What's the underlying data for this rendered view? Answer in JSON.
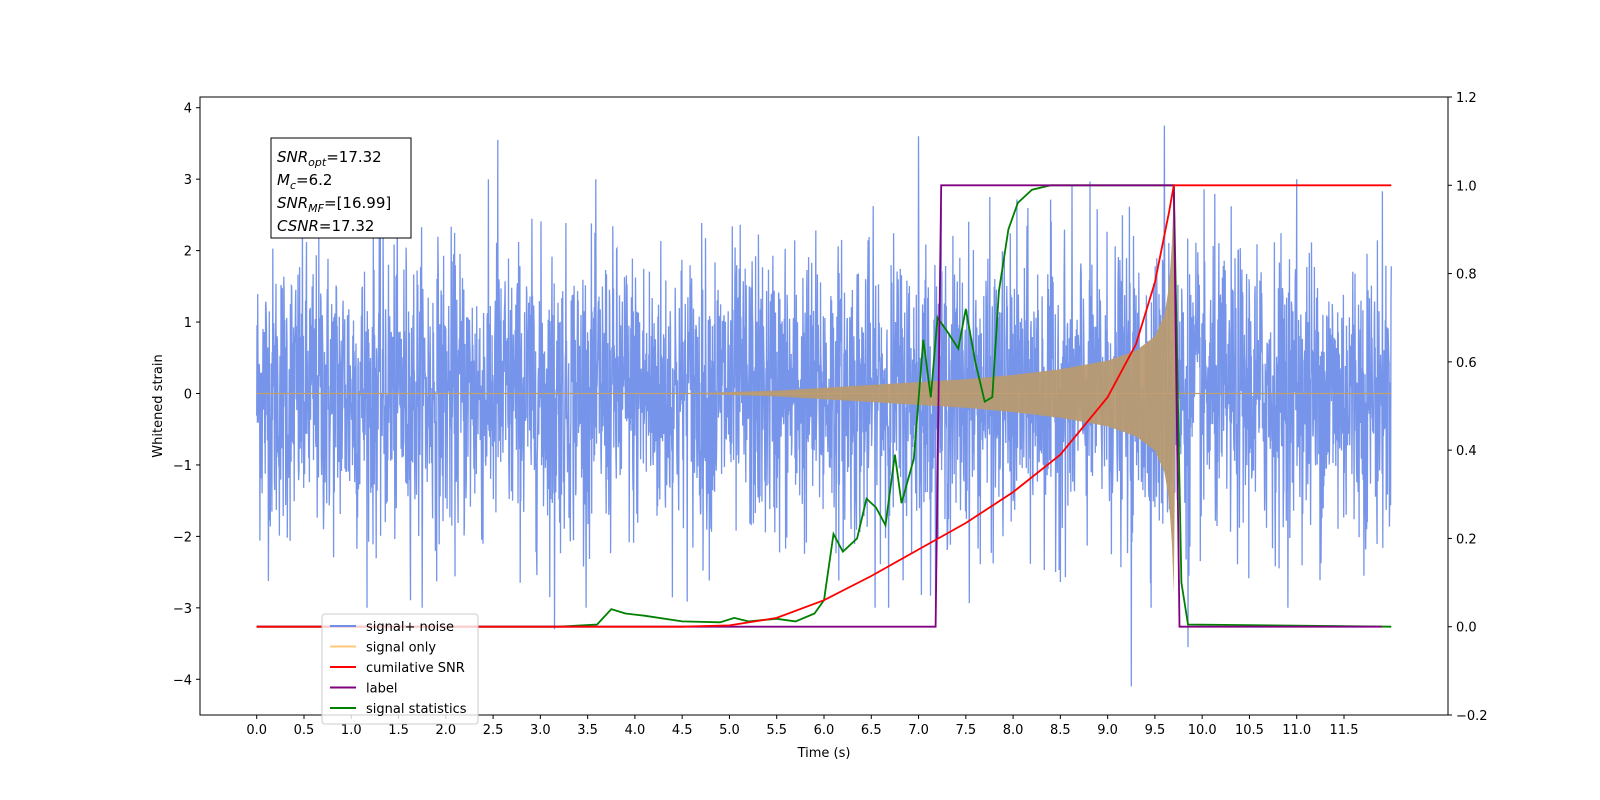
{
  "chart_data": {
    "type": "line",
    "xlabel": "Time (s)",
    "ylabel": "Whitened strain",
    "xlim": [
      -0.6,
      12.6
    ],
    "ylim": [
      -4.5,
      4.15
    ],
    "ylim_right": [
      -0.2,
      1.2
    ],
    "x_ticks": [
      "0.0",
      "0.5",
      "1.0",
      "1.5",
      "2.0",
      "2.5",
      "3.0",
      "3.5",
      "4.0",
      "4.5",
      "5.0",
      "5.5",
      "6.0",
      "6.5",
      "7.0",
      "7.5",
      "8.0",
      "8.5",
      "9.0",
      "9.5",
      "10.0",
      "10.5",
      "11.0",
      "11.5"
    ],
    "y_ticks_left": [
      "−4",
      "−3",
      "−2",
      "−1",
      "0",
      "1",
      "2",
      "3",
      "4"
    ],
    "y_ticks_right": [
      "−0.2",
      "0.0",
      "0.2",
      "0.4",
      "0.6",
      "0.8",
      "1.0",
      "1.2"
    ],
    "annotation": [
      {
        "base": "SNR",
        "sub": "opt",
        "value": "=17.32"
      },
      {
        "base": "M",
        "sub": "c",
        "value": "=6.2"
      },
      {
        "base": "SNR",
        "sub": "MF",
        "value": "=[16.99]"
      },
      {
        "base": "CSNR",
        "sub": "",
        "value": "=17.32"
      }
    ],
    "legend": {
      "placement": "lower-left",
      "entries": [
        {
          "label": "signal+ noise",
          "color": "#6f8ee8"
        },
        {
          "label": "signal only",
          "color": "#ffc87a"
        },
        {
          "label": "cumilative SNR",
          "color": "#ff0000"
        },
        {
          "label": "label",
          "color": "#800080"
        },
        {
          "label": "signal statistics",
          "color": "#008000"
        }
      ]
    },
    "series": [
      {
        "name": "signal+ noise",
        "axis": "left",
        "color": "#6f8ee8",
        "x_range": [
          0.0,
          12.0
        ],
        "spread_typical": 1.0,
        "peak_points": [
          [
            2.55,
            3.55
          ],
          [
            7.0,
            3.6
          ],
          [
            9.6,
            3.75
          ],
          [
            9.25,
            -4.1
          ],
          [
            3.15,
            -3.3
          ],
          [
            9.85,
            -3.55
          ],
          [
            11.0,
            3.0
          ]
        ]
      },
      {
        "name": "signal only",
        "axis": "left",
        "color": "#c0a070",
        "x_range": [
          0.0,
          12.0
        ],
        "envelope": [
          [
            0.0,
            0.0
          ],
          [
            4.5,
            0.0
          ],
          [
            5.0,
            0.02
          ],
          [
            5.5,
            0.04
          ],
          [
            6.0,
            0.08
          ],
          [
            6.5,
            0.12
          ],
          [
            7.0,
            0.16
          ],
          [
            7.5,
            0.2
          ],
          [
            8.0,
            0.26
          ],
          [
            8.5,
            0.34
          ],
          [
            9.0,
            0.46
          ],
          [
            9.3,
            0.6
          ],
          [
            9.5,
            0.8
          ],
          [
            9.6,
            1.1
          ],
          [
            9.65,
            1.5
          ],
          [
            9.68,
            2.1
          ],
          [
            9.7,
            2.8
          ],
          [
            9.72,
            0.0
          ],
          [
            12.0,
            0.0
          ]
        ]
      },
      {
        "name": "cumilative SNR",
        "axis": "right",
        "color": "#ff0000",
        "points": [
          [
            0.0,
            0.0
          ],
          [
            4.5,
            0.0
          ],
          [
            5.0,
            0.003
          ],
          [
            5.5,
            0.02
          ],
          [
            6.0,
            0.06
          ],
          [
            6.5,
            0.115
          ],
          [
            7.0,
            0.175
          ],
          [
            7.5,
            0.235
          ],
          [
            8.0,
            0.305
          ],
          [
            8.5,
            0.39
          ],
          [
            9.0,
            0.52
          ],
          [
            9.3,
            0.64
          ],
          [
            9.5,
            0.78
          ],
          [
            9.65,
            0.94
          ],
          [
            9.7,
            1.0
          ],
          [
            12.0,
            1.0
          ]
        ]
      },
      {
        "name": "label",
        "axis": "right",
        "color": "#800080",
        "points": [
          [
            0.0,
            0.0
          ],
          [
            7.18,
            0.0
          ],
          [
            7.24,
            1.0
          ],
          [
            9.7,
            1.0
          ],
          [
            9.76,
            0.0
          ],
          [
            11.9,
            0.0
          ]
        ]
      },
      {
        "name": "signal statistics",
        "axis": "right",
        "color": "#008000",
        "points": [
          [
            0.0,
            0.0
          ],
          [
            3.2,
            0.0
          ],
          [
            3.6,
            0.005
          ],
          [
            3.75,
            0.04
          ],
          [
            3.9,
            0.03
          ],
          [
            4.1,
            0.025
          ],
          [
            4.5,
            0.012
          ],
          [
            4.9,
            0.01
          ],
          [
            5.05,
            0.02
          ],
          [
            5.2,
            0.012
          ],
          [
            5.5,
            0.018
          ],
          [
            5.7,
            0.012
          ],
          [
            5.9,
            0.03
          ],
          [
            6.0,
            0.06
          ],
          [
            6.1,
            0.21
          ],
          [
            6.2,
            0.17
          ],
          [
            6.35,
            0.2
          ],
          [
            6.45,
            0.29
          ],
          [
            6.55,
            0.27
          ],
          [
            6.65,
            0.23
          ],
          [
            6.75,
            0.39
          ],
          [
            6.82,
            0.28
          ],
          [
            6.95,
            0.38
          ],
          [
            7.05,
            0.65
          ],
          [
            7.13,
            0.52
          ],
          [
            7.2,
            0.7
          ],
          [
            7.3,
            0.67
          ],
          [
            7.42,
            0.63
          ],
          [
            7.5,
            0.72
          ],
          [
            7.6,
            0.6
          ],
          [
            7.7,
            0.51
          ],
          [
            7.78,
            0.52
          ],
          [
            7.85,
            0.76
          ],
          [
            7.95,
            0.9
          ],
          [
            8.05,
            0.96
          ],
          [
            8.2,
            0.99
          ],
          [
            8.4,
            1.0
          ],
          [
            9.7,
            1.0
          ],
          [
            9.78,
            0.1
          ],
          [
            9.85,
            0.005
          ],
          [
            12.0,
            0.0
          ]
        ]
      }
    ]
  }
}
